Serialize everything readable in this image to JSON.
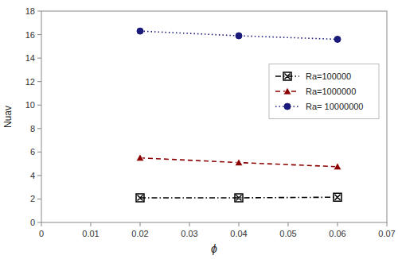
{
  "chart_data": {
    "type": "line",
    "x": [
      0.02,
      0.04,
      0.06
    ],
    "series": [
      {
        "name": "Ra=100000",
        "color": "#000000",
        "marker": "x-square",
        "line_style": "dashdot",
        "values": [
          2.1,
          2.1,
          2.15
        ]
      },
      {
        "name": "Ra=1000000",
        "color": "#8B0000",
        "marker": "triangle",
        "line_style": "dashed",
        "values": [
          5.5,
          5.1,
          4.75
        ]
      },
      {
        "name": "Ra= 10000000",
        "color": "#1a1a7a",
        "marker": "circle",
        "line_style": "dotted",
        "values": [
          16.3,
          15.9,
          15.6
        ]
      }
    ],
    "xlabel": "ϕ",
    "ylabel": "Nuav",
    "xlim": [
      0,
      0.07
    ],
    "ylim": [
      0,
      18
    ],
    "xticks": [
      0,
      0.01,
      0.02,
      0.03,
      0.04,
      0.05,
      0.06,
      0.07
    ],
    "yticks": [
      0,
      2,
      4,
      6,
      8,
      10,
      12,
      14,
      16,
      18
    ],
    "grid": false,
    "legend": "upper right"
  }
}
